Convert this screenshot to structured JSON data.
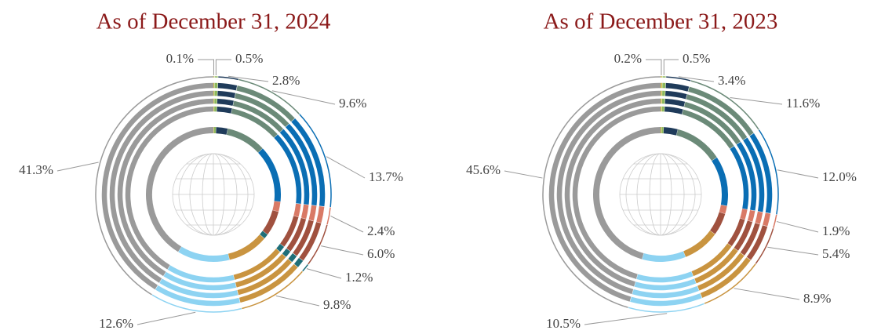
{
  "chart_data": [
    {
      "type": "pie",
      "title": "As of December 31, 2024",
      "values": [
        0.1,
        0.5,
        2.8,
        9.6,
        13.7,
        2.4,
        6.0,
        1.2,
        9.8,
        12.6,
        41.3
      ],
      "value_labels": [
        "0.1%",
        "0.5%",
        "2.8%",
        "9.6%",
        "13.7%",
        "2.4%",
        "6.0%",
        "1.2%",
        "9.8%",
        "12.6%",
        "41.3%"
      ],
      "colors": [
        "#c9b53c",
        "#8db85a",
        "#1f3b5a",
        "#6b8a78",
        "#0a6eb4",
        "#d97a66",
        "#a0513f",
        "#1e6e78",
        "#c99440",
        "#8dd3f2",
        "#9a9a9a"
      ]
    },
    {
      "type": "pie",
      "title": "As of December 31, 2023",
      "values": [
        0.2,
        0.5,
        3.4,
        11.6,
        12.0,
        1.9,
        5.4,
        8.9,
        10.5,
        45.6
      ],
      "value_labels": [
        "0.2%",
        "0.5%",
        "3.4%",
        "11.6%",
        "12.0%",
        "1.9%",
        "5.4%",
        "8.9%",
        "10.5%",
        "45.6%"
      ],
      "colors": [
        "#c9b53c",
        "#8db85a",
        "#1f3b5a",
        "#6b8a78",
        "#0a6eb4",
        "#d97a66",
        "#a0513f",
        "#c99440",
        "#8dd3f2",
        "#9a9a9a"
      ]
    }
  ]
}
